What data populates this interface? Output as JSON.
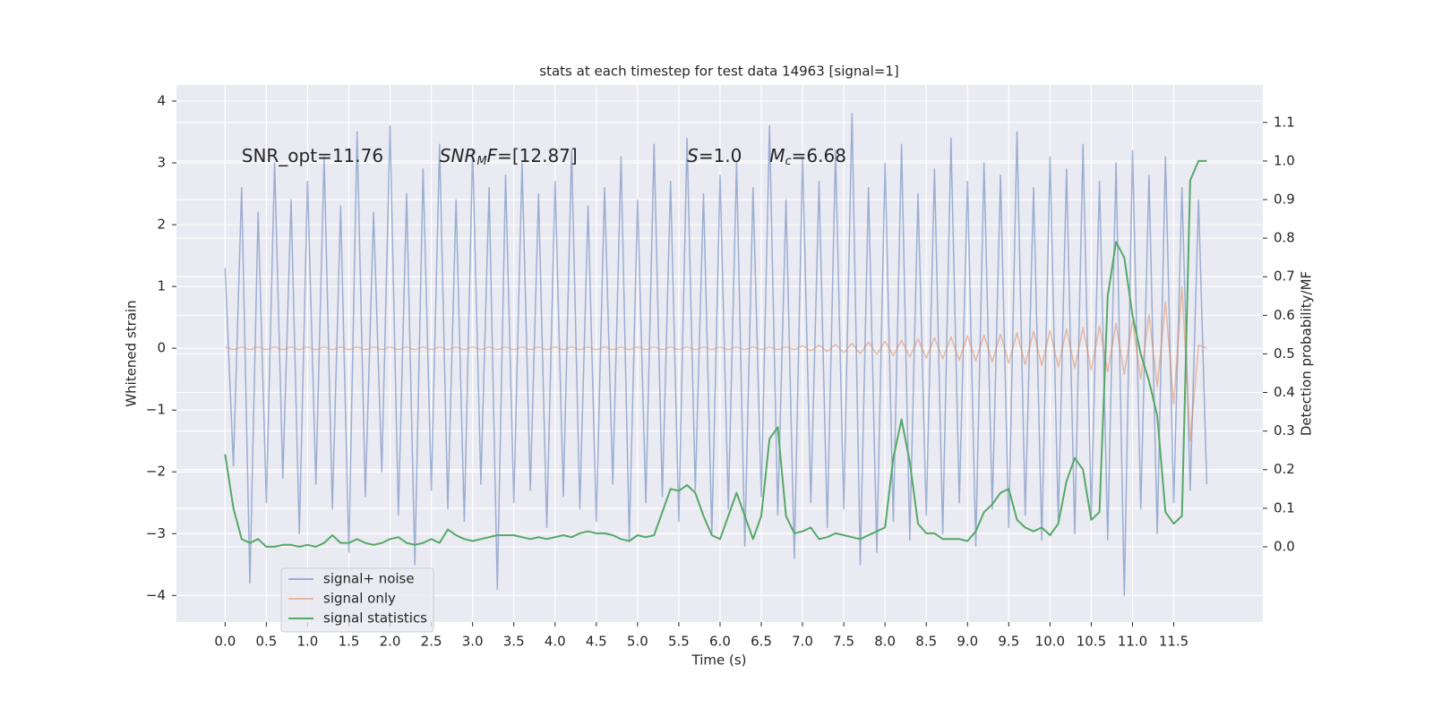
{
  "chart_data": {
    "type": "line",
    "title": "stats at each timestep for test data 14963 [signal=1]",
    "xlabel": "Time (s)",
    "ylabel": "Whitened strain",
    "y2label": "Detection probability/MF",
    "annotations": [
      [
        {
          "text": "SNR_opt=11.76"
        }
      ],
      [
        {
          "text": "SNR",
          "italic": true
        },
        {
          "text": "M",
          "italic": true,
          "sub": true
        },
        {
          "text": "F",
          "italic": true
        },
        {
          "text": "=[12.87]"
        }
      ],
      [
        {
          "text": "S",
          "italic": true
        },
        {
          "text": "=1.0"
        }
      ],
      [
        {
          "text": "M",
          "italic": true
        },
        {
          "text": "c",
          "italic": true,
          "sub": true
        },
        {
          "text": "=6.68"
        }
      ]
    ],
    "xlim": [
      -0.59,
      12.58
    ],
    "ylim": [
      -4.43,
      4.26
    ],
    "y2lim": [
      -0.195,
      1.197
    ],
    "xticks": [
      {
        "value": 0,
        "label": "0.0"
      },
      {
        "value": 0.5,
        "label": "0.5"
      },
      {
        "value": 1,
        "label": "1.0"
      },
      {
        "value": 1.5,
        "label": "1.5"
      },
      {
        "value": 2,
        "label": "2.0"
      },
      {
        "value": 2.5,
        "label": "2.5"
      },
      {
        "value": 3,
        "label": "3.0"
      },
      {
        "value": 3.5,
        "label": "3.5"
      },
      {
        "value": 4,
        "label": "4.0"
      },
      {
        "value": 4.5,
        "label": "4.5"
      },
      {
        "value": 5,
        "label": "5.0"
      },
      {
        "value": 5.5,
        "label": "5.5"
      },
      {
        "value": 6,
        "label": "6.0"
      },
      {
        "value": 6.5,
        "label": "6.5"
      },
      {
        "value": 7,
        "label": "7.0"
      },
      {
        "value": 7.5,
        "label": "7.5"
      },
      {
        "value": 8,
        "label": "8.0"
      },
      {
        "value": 8.5,
        "label": "8.5"
      },
      {
        "value": 9,
        "label": "9.0"
      },
      {
        "value": 9.5,
        "label": "9.5"
      },
      {
        "value": 10,
        "label": "10.0"
      },
      {
        "value": 10.5,
        "label": "10.5"
      },
      {
        "value": 11,
        "label": "11.0"
      },
      {
        "value": 11.5,
        "label": "11.5"
      }
    ],
    "yticks": [
      {
        "value": -4,
        "label": "−4"
      },
      {
        "value": -3,
        "label": "−3"
      },
      {
        "value": -2,
        "label": "−2"
      },
      {
        "value": -1,
        "label": "−1"
      },
      0,
      1,
      2,
      3,
      4
    ],
    "y2ticks": [
      {
        "value": 0,
        "label": "0.0"
      },
      0.1,
      0.2,
      0.3,
      0.4,
      0.5,
      0.6,
      0.7,
      0.8,
      0.9,
      {
        "value": 1,
        "label": "1.0"
      },
      1.1
    ],
    "grid": true,
    "legend": "lower left",
    "x": [
      0,
      0.1,
      0.2,
      0.3,
      0.4,
      0.5,
      0.6,
      0.7,
      0.8,
      0.9,
      1,
      1.1,
      1.2,
      1.3,
      1.4,
      1.5,
      1.6,
      1.7,
      1.8,
      1.9,
      2,
      2.1,
      2.2,
      2.3,
      2.4,
      2.5,
      2.6,
      2.7,
      2.8,
      2.9,
      3,
      3.1,
      3.2,
      3.3,
      3.4,
      3.5,
      3.6,
      3.7,
      3.8,
      3.9,
      4,
      4.1,
      4.2,
      4.3,
      4.4,
      4.5,
      4.6,
      4.7,
      4.8,
      4.9,
      5,
      5.1,
      5.2,
      5.3,
      5.4,
      5.5,
      5.6,
      5.7,
      5.8,
      5.9,
      6,
      6.1,
      6.2,
      6.3,
      6.4,
      6.5,
      6.6,
      6.7,
      6.8,
      6.9,
      7,
      7.1,
      7.2,
      7.3,
      7.4,
      7.5,
      7.6,
      7.7,
      7.8,
      7.9,
      8,
      8.1,
      8.2,
      8.3,
      8.4,
      8.5,
      8.6,
      8.7,
      8.8,
      8.9,
      9,
      9.1,
      9.2,
      9.3,
      9.4,
      9.5,
      9.6,
      9.7,
      9.8,
      9.9,
      10,
      10.1,
      10.2,
      10.3,
      10.4,
      10.5,
      10.6,
      10.7,
      10.8,
      10.9,
      11,
      11.1,
      11.2,
      11.3,
      11.4,
      11.5,
      11.6,
      11.7,
      11.8,
      11.9
    ],
    "series": [
      {
        "name": "signal+ noise",
        "color": "#4c72b0",
        "opacity": 0.5,
        "values": [
          1.3,
          -1.9,
          2.6,
          -3.8,
          2.2,
          -2.5,
          3.0,
          -2.1,
          2.4,
          -3.0,
          2.7,
          -2.2,
          3.1,
          -2.6,
          2.3,
          -3.3,
          3.5,
          -2.4,
          2.2,
          -2.0,
          3.6,
          -2.7,
          2.5,
          -3.5,
          2.9,
          -2.3,
          3.3,
          -2.6,
          2.4,
          -2.8,
          3.2,
          -2.2,
          2.6,
          -3.9,
          2.8,
          -2.5,
          3.0,
          -2.3,
          2.5,
          -2.9,
          2.7,
          -2.4,
          3.2,
          -2.6,
          2.3,
          -2.8,
          2.6,
          -2.2,
          3.1,
          -3.1,
          2.4,
          -2.5,
          3.3,
          -2.4,
          2.7,
          -2.8,
          3.4,
          -2.3,
          2.5,
          -3.0,
          2.8,
          -2.6,
          3.0,
          -3.2,
          2.6,
          -2.4,
          3.6,
          -2.7,
          2.4,
          -3.4,
          3.1,
          -2.5,
          2.7,
          -2.9,
          3.2,
          -2.6,
          3.8,
          -3.5,
          2.6,
          -3.3,
          3.0,
          -2.8,
          3.3,
          -3.1,
          2.5,
          -2.7,
          2.9,
          -3.0,
          3.4,
          -2.5,
          2.7,
          -3.2,
          3.0,
          -2.6,
          2.8,
          -2.9,
          3.5,
          -2.7,
          2.6,
          -3.1,
          3.1,
          -2.8,
          2.9,
          -3.0,
          3.3,
          -2.7,
          2.7,
          -3.1,
          3.0,
          -4.0,
          3.2,
          -2.6,
          2.8,
          -3.0,
          3.1,
          -2.5,
          2.6,
          -2.3,
          2.4,
          -2.2
        ]
      },
      {
        "name": "signal only",
        "color": "#dd8452",
        "opacity": 0.5,
        "values": [
          0.02,
          -0.02,
          0.02,
          -0.02,
          0.02,
          -0.02,
          0.02,
          -0.02,
          0.02,
          -0.02,
          0.02,
          -0.02,
          0.02,
          -0.02,
          0.02,
          -0.02,
          0.02,
          -0.02,
          0.02,
          -0.02,
          0.02,
          -0.02,
          0.02,
          -0.02,
          0.02,
          -0.02,
          0.02,
          -0.02,
          0.02,
          -0.02,
          0.02,
          -0.02,
          0.02,
          -0.02,
          0.02,
          -0.02,
          0.02,
          -0.02,
          0.02,
          -0.02,
          0.02,
          -0.02,
          0.02,
          -0.02,
          0.02,
          -0.02,
          0.02,
          -0.02,
          0.02,
          -0.02,
          0.02,
          -0.02,
          0.02,
          -0.02,
          0.02,
          -0.02,
          0.02,
          -0.02,
          0.02,
          -0.02,
          0.02,
          -0.02,
          0.02,
          -0.02,
          0.02,
          -0.02,
          0.02,
          -0.02,
          0.02,
          -0.02,
          0.04,
          -0.04,
          0.05,
          -0.05,
          0.06,
          -0.07,
          0.08,
          -0.09,
          0.1,
          -0.1,
          0.11,
          -0.12,
          0.13,
          -0.14,
          0.15,
          -0.16,
          0.17,
          -0.17,
          0.18,
          -0.19,
          0.2,
          -0.2,
          0.21,
          -0.22,
          0.23,
          -0.24,
          0.25,
          -0.26,
          0.27,
          -0.28,
          0.29,
          -0.3,
          0.31,
          -0.32,
          0.33,
          -0.35,
          0.36,
          -0.38,
          0.4,
          -0.42,
          0.45,
          -0.5,
          0.55,
          -0.62,
          0.75,
          -0.9,
          1.0,
          -1.5,
          0.05,
          0.0
        ]
      },
      {
        "name": "signal statistics",
        "color": "#55a868",
        "opacity": 1,
        "axis": "y2",
        "values": [
          0.24,
          0.1,
          0.02,
          0.01,
          0.02,
          0.0,
          0.0,
          0.005,
          0.005,
          0.0,
          0.005,
          0.0,
          0.01,
          0.03,
          0.01,
          0.01,
          0.02,
          0.01,
          0.005,
          0.01,
          0.02,
          0.025,
          0.01,
          0.005,
          0.01,
          0.02,
          0.01,
          0.045,
          0.03,
          0.02,
          0.015,
          0.02,
          0.025,
          0.03,
          0.03,
          0.03,
          0.025,
          0.02,
          0.025,
          0.02,
          0.025,
          0.03,
          0.025,
          0.035,
          0.04,
          0.035,
          0.035,
          0.03,
          0.02,
          0.015,
          0.03,
          0.025,
          0.03,
          0.09,
          0.15,
          0.145,
          0.16,
          0.14,
          0.08,
          0.03,
          0.02,
          0.08,
          0.14,
          0.08,
          0.02,
          0.08,
          0.28,
          0.31,
          0.08,
          0.035,
          0.04,
          0.05,
          0.02,
          0.025,
          0.035,
          0.03,
          0.025,
          0.02,
          0.03,
          0.04,
          0.05,
          0.23,
          0.33,
          0.22,
          0.06,
          0.035,
          0.035,
          0.02,
          0.02,
          0.02,
          0.015,
          0.04,
          0.09,
          0.11,
          0.14,
          0.15,
          0.07,
          0.05,
          0.04,
          0.05,
          0.03,
          0.06,
          0.17,
          0.23,
          0.2,
          0.07,
          0.09,
          0.65,
          0.79,
          0.75,
          0.6,
          0.5,
          0.43,
          0.34,
          0.09,
          0.06,
          0.08,
          0.95,
          1.0,
          1.0
        ]
      }
    ]
  }
}
